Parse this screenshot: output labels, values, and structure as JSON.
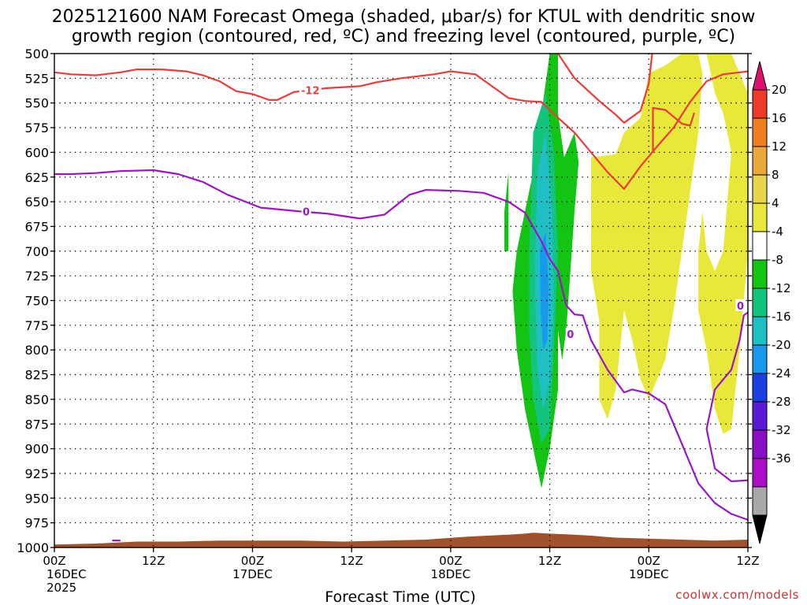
{
  "chart_data": {
    "type": "heatmap",
    "title_lines": [
      "2025121600 NAM Forecast Omega (shaded, μbar/s) for KTUL with dendritic snow",
      "growth region (contoured, red, ºC) and freezing level (contoured, purple, ºC)"
    ],
    "xlabel": "Forecast Time (UTC)",
    "credit": "coolwx.com/models",
    "x_unit": "forecast hour",
    "xlim": [
      0,
      84
    ],
    "ylim": [
      1000,
      500
    ],
    "y_ticks": [
      500,
      525,
      550,
      575,
      600,
      625,
      650,
      675,
      700,
      725,
      750,
      775,
      800,
      825,
      850,
      875,
      900,
      925,
      950,
      975,
      1000
    ],
    "y_tick_labels": [
      "500",
      "525",
      "550",
      "575",
      "600",
      "625",
      "650",
      "675",
      "700",
      "725",
      "750",
      "775",
      "800",
      "825",
      "850",
      "875",
      "900",
      "925",
      "950",
      "975",
      "1000"
    ],
    "x_ticks": [
      {
        "x": 0,
        "labels": [
          "00Z",
          "16DEC",
          "2025"
        ]
      },
      {
        "x": 12,
        "labels": [
          "12Z"
        ]
      },
      {
        "x": 24,
        "labels": [
          "00Z",
          "17DEC"
        ]
      },
      {
        "x": 36,
        "labels": [
          "12Z"
        ]
      },
      {
        "x": 48,
        "labels": [
          "00Z",
          "18DEC"
        ]
      },
      {
        "x": 60,
        "labels": [
          "12Z"
        ]
      },
      {
        "x": 72,
        "labels": [
          "00Z",
          "19DEC"
        ]
      },
      {
        "x": 84,
        "labels": [
          "12Z"
        ]
      }
    ],
    "grid": "dotted",
    "colorbar": {
      "labels": [
        "20",
        "16",
        "12",
        "8",
        "4",
        "-4",
        "-8",
        "-12",
        "-16",
        "-20",
        "-24",
        "-28",
        "-32",
        "-36"
      ],
      "colors": [
        "#dd1070",
        "#ef3a2a",
        "#ef7f1e",
        "#e8a83a",
        "#e7d448",
        "#e8e83a",
        "#ffffff",
        "#13c413",
        "#13c47f",
        "#1fbfc4",
        "#1899ee",
        "#1a3fe0",
        "#5a1bd6",
        "#8a0fc4",
        "#ad0fc8",
        "#a8a8a8",
        "#000000"
      ]
    },
    "series": [
      {
        "name": "-12",
        "color": "#ef3a3a",
        "kind": "line",
        "points": [
          [
            0,
            519
          ],
          [
            2,
            521
          ],
          [
            5,
            522
          ],
          [
            8,
            519
          ],
          [
            10,
            516
          ],
          [
            13,
            516
          ],
          [
            16,
            518
          ],
          [
            18,
            522
          ],
          [
            20,
            528
          ],
          [
            22,
            538
          ],
          [
            24,
            541
          ],
          [
            26,
            547
          ],
          [
            27,
            547
          ],
          [
            29,
            539
          ],
          [
            31,
            537
          ],
          [
            33,
            535
          ],
          [
            37,
            533
          ],
          [
            39,
            529
          ],
          [
            42,
            525
          ],
          [
            46,
            521
          ],
          [
            48,
            518
          ],
          [
            51,
            521
          ],
          [
            53,
            533
          ],
          [
            55,
            545
          ],
          [
            57,
            548
          ],
          [
            59,
            549
          ],
          [
            61,
            565
          ],
          [
            63,
            580
          ],
          [
            65,
            600
          ],
          [
            67,
            620
          ],
          [
            69,
            637
          ],
          [
            71,
            614
          ],
          [
            73,
            594
          ],
          [
            75,
            575
          ],
          [
            77,
            549
          ],
          [
            79,
            528
          ],
          [
            81,
            521
          ],
          [
            84,
            518
          ]
        ]
      },
      {
        "name": "-12 upper",
        "color": "#ef3a3a",
        "kind": "line",
        "points": [
          [
            61,
            500
          ],
          [
            63,
            525
          ],
          [
            66,
            548
          ],
          [
            68,
            562
          ],
          [
            69,
            570
          ],
          [
            71,
            558
          ],
          [
            72,
            530
          ],
          [
            72.4,
            500
          ]
        ]
      },
      {
        "name": "-12 branch",
        "color": "#ef3a3a",
        "kind": "line",
        "points": [
          [
            72.5,
            600
          ],
          [
            72.5,
            555
          ],
          [
            74,
            557
          ],
          [
            76,
            571
          ],
          [
            77,
            573
          ],
          [
            77.5,
            560
          ]
        ]
      },
      {
        "name": "0",
        "color": "#9b15c8",
        "kind": "line",
        "points": [
          [
            0,
            622
          ],
          [
            2,
            622
          ],
          [
            5,
            621
          ],
          [
            8,
            619
          ],
          [
            12,
            618
          ],
          [
            15,
            622
          ],
          [
            18,
            630
          ],
          [
            21,
            643
          ],
          [
            25,
            656
          ],
          [
            30,
            660
          ],
          [
            33,
            662
          ],
          [
            37,
            667
          ],
          [
            40,
            663
          ],
          [
            43,
            643
          ],
          [
            45,
            638
          ],
          [
            49,
            639
          ],
          [
            52,
            641
          ],
          [
            55,
            650
          ],
          [
            57,
            661
          ],
          [
            59,
            690
          ],
          [
            60,
            708
          ],
          [
            61,
            720
          ],
          [
            62,
            755
          ],
          [
            63,
            764
          ],
          [
            64,
            765
          ],
          [
            65,
            790
          ],
          [
            67,
            820
          ],
          [
            69,
            843
          ],
          [
            70,
            840
          ],
          [
            72,
            844
          ],
          [
            74,
            855
          ],
          [
            76,
            895
          ],
          [
            78,
            935
          ],
          [
            80,
            955
          ],
          [
            82,
            966
          ],
          [
            84,
            972
          ]
        ]
      },
      {
        "name": "0 right",
        "color": "#9b15c8",
        "kind": "line",
        "points": [
          [
            84,
            932
          ],
          [
            82,
            933
          ],
          [
            80,
            920
          ],
          [
            79,
            880
          ],
          [
            80,
            840
          ],
          [
            82,
            820
          ],
          [
            83,
            790
          ],
          [
            83.5,
            765
          ],
          [
            84,
            762
          ]
        ]
      },
      {
        "name": "0 low",
        "color": "#9b15c8",
        "kind": "line",
        "points": [
          [
            7,
            993
          ],
          [
            8,
            993
          ]
        ]
      }
    ],
    "contour_labels": [
      {
        "text": "-12",
        "x": 31,
        "y": 537,
        "color": "#ef3a3a"
      },
      {
        "text": "0",
        "x": 30.5,
        "y": 660,
        "color": "#9b15c8"
      },
      {
        "text": "0",
        "x": 62.5,
        "y": 784,
        "color": "#9b15c8"
      },
      {
        "text": "0",
        "x": 83.1,
        "y": 755,
        "color": "#9b15c8"
      }
    ],
    "omega_regions": [
      {
        "value": "4 to 8",
        "color": "#e8e83a",
        "points": [
          [
            65,
            605
          ],
          [
            68,
            602
          ],
          [
            69,
            580
          ],
          [
            71,
            565
          ],
          [
            72,
            520
          ],
          [
            74,
            512
          ],
          [
            76,
            500
          ],
          [
            78,
            500
          ],
          [
            78.5,
            520
          ],
          [
            78,
            580
          ],
          [
            77,
            640
          ],
          [
            76,
            700
          ],
          [
            75,
            760
          ],
          [
            74,
            810
          ],
          [
            72,
            850
          ],
          [
            71,
            830
          ],
          [
            70,
            790
          ],
          [
            69,
            760
          ],
          [
            68,
            840
          ],
          [
            67,
            870
          ],
          [
            66,
            850
          ],
          [
            66,
            770
          ],
          [
            65,
            720
          ],
          [
            65,
            660
          ]
        ]
      },
      {
        "value": "4 to 8",
        "color": "#e8e83a",
        "points": [
          [
            79,
            500
          ],
          [
            82,
            500
          ],
          [
            83,
            520
          ],
          [
            84,
            540
          ],
          [
            84,
            700
          ],
          [
            83,
            800
          ],
          [
            82,
            880
          ],
          [
            81,
            885
          ],
          [
            80,
            860
          ],
          [
            79,
            800
          ],
          [
            78,
            760
          ],
          [
            78,
            700
          ],
          [
            78.5,
            660
          ],
          [
            79,
            700
          ],
          [
            80,
            720
          ],
          [
            81,
            700
          ],
          [
            82,
            600
          ],
          [
            81,
            560
          ],
          [
            80,
            540
          ]
        ]
      },
      {
        "value": "-4 to -8",
        "color": "#13c413",
        "points": [
          [
            57,
            660
          ],
          [
            58,
            620
          ],
          [
            59,
            560
          ],
          [
            60,
            500
          ],
          [
            61,
            500
          ],
          [
            61,
            560
          ],
          [
            62,
            620
          ],
          [
            62,
            700
          ],
          [
            61,
            780
          ],
          [
            61,
            840
          ],
          [
            60,
            900
          ],
          [
            59,
            940
          ],
          [
            58,
            900
          ],
          [
            57,
            860
          ],
          [
            56,
            800
          ],
          [
            55.5,
            740
          ],
          [
            56,
            700
          ]
        ]
      },
      {
        "value": "-4 to -8",
        "color": "#13c413",
        "points": [
          [
            55,
            620
          ],
          [
            55,
            700
          ],
          [
            54.5,
            700
          ],
          [
            54.5,
            660
          ]
        ]
      },
      {
        "value": "-4 to -8",
        "color": "#13c413",
        "points": [
          [
            61,
            620
          ],
          [
            62,
            600
          ],
          [
            63,
            580
          ],
          [
            63.5,
            610
          ],
          [
            63,
            660
          ],
          [
            62.5,
            720
          ],
          [
            62,
            780
          ],
          [
            61.5,
            810
          ],
          [
            61,
            780
          ],
          [
            61,
            700
          ]
        ]
      },
      {
        "value": "-8 to -12",
        "color": "#13c47f",
        "points": [
          [
            58,
            580
          ],
          [
            59.5,
            540
          ],
          [
            60.5,
            600
          ],
          [
            61,
            700
          ],
          [
            60.5,
            800
          ],
          [
            60,
            880
          ],
          [
            59,
            895
          ],
          [
            58,
            850
          ],
          [
            57.5,
            780
          ],
          [
            57.5,
            700
          ]
        ]
      },
      {
        "value": "-12 to -16",
        "color": "#1fbfc4",
        "points": [
          [
            58.5,
            620
          ],
          [
            59.5,
            580
          ],
          [
            60.3,
            660
          ],
          [
            60.5,
            760
          ],
          [
            60,
            830
          ],
          [
            59.2,
            860
          ],
          [
            58.5,
            820
          ],
          [
            58.2,
            740
          ],
          [
            58.3,
            680
          ]
        ]
      },
      {
        "value": "-16 to -20",
        "color": "#1899ee",
        "points": [
          [
            58.8,
            700
          ],
          [
            59.5,
            680
          ],
          [
            59.9,
            740
          ],
          [
            59.7,
            790
          ],
          [
            59.2,
            800
          ],
          [
            58.9,
            760
          ]
        ]
      }
    ],
    "terrain": {
      "color": "#a0522d",
      "points": [
        [
          0,
          997
        ],
        [
          5,
          996
        ],
        [
          10,
          994
        ],
        [
          15,
          994
        ],
        [
          20,
          993
        ],
        [
          25,
          993
        ],
        [
          30,
          993
        ],
        [
          35,
          994
        ],
        [
          40,
          993
        ],
        [
          45,
          992
        ],
        [
          50,
          989
        ],
        [
          55,
          987
        ],
        [
          57,
          986
        ],
        [
          58,
          985
        ],
        [
          60,
          986
        ],
        [
          63,
          987
        ],
        [
          65,
          988
        ],
        [
          68,
          990
        ],
        [
          72,
          991
        ],
        [
          76,
          992
        ],
        [
          80,
          993
        ],
        [
          84,
          992
        ]
      ]
    }
  }
}
